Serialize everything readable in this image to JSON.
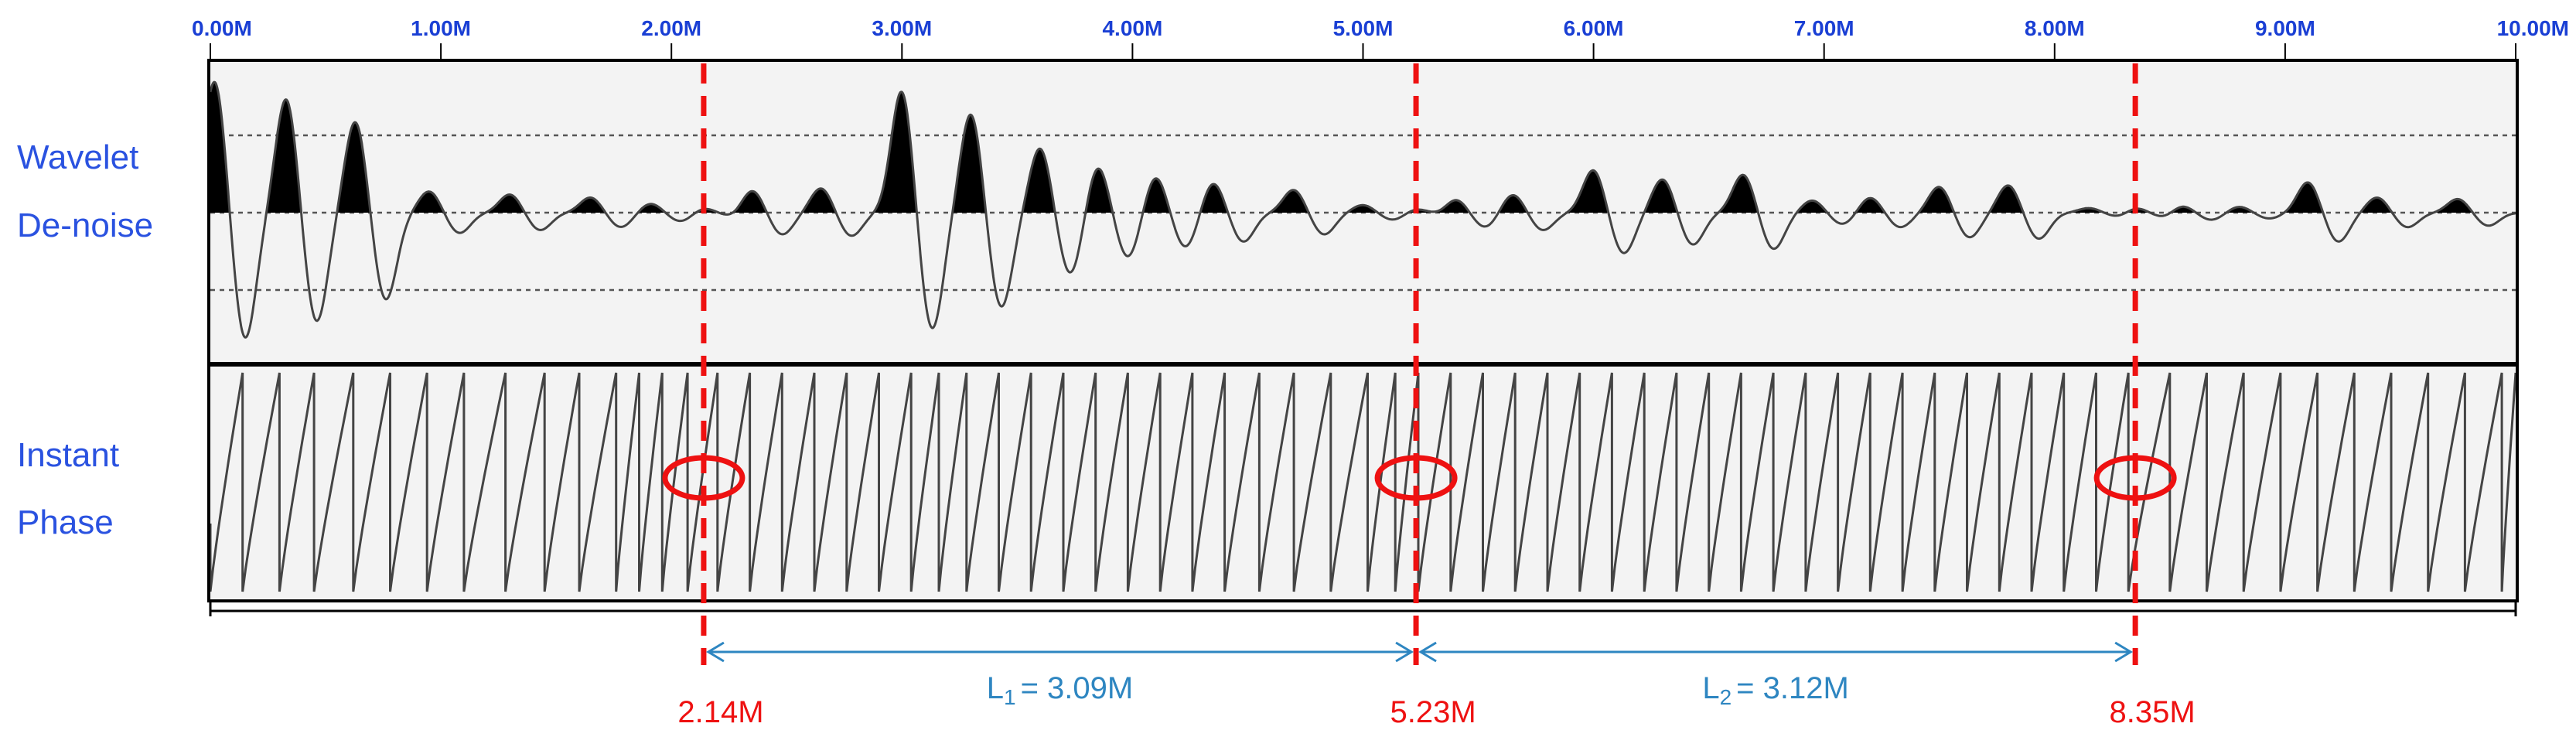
{
  "chart_data": {
    "type": "line",
    "x_unit": "M",
    "xlim": [
      0,
      10
    ],
    "x_ticks": [
      {
        "value": 0,
        "label": "0.00M"
      },
      {
        "value": 1,
        "label": "1.00M"
      },
      {
        "value": 2,
        "label": "2.00M"
      },
      {
        "value": 3,
        "label": "3.00M"
      },
      {
        "value": 4,
        "label": "4.00M"
      },
      {
        "value": 5,
        "label": "5.00M"
      },
      {
        "value": 6,
        "label": "6.00M"
      },
      {
        "value": 7,
        "label": "7.00M"
      },
      {
        "value": 8,
        "label": "8.00M"
      },
      {
        "value": 9,
        "label": "9.00M"
      },
      {
        "value": 10,
        "label": "10.00M"
      }
    ],
    "panels": [
      {
        "line1": "Wavelet",
        "line2": "De-noise"
      },
      {
        "line1": "Instant",
        "line2": "Phase"
      }
    ],
    "markers": [
      {
        "x": 2.14,
        "label": "2.14M"
      },
      {
        "x": 5.23,
        "label": "5.23M"
      },
      {
        "x": 8.35,
        "label": "8.35M"
      }
    ],
    "segments": [
      {
        "from": 2.14,
        "to": 5.23,
        "symbol": "L",
        "sub": "1",
        "value": "= 3.09M"
      },
      {
        "from": 5.23,
        "to": 8.35,
        "symbol": "L",
        "sub": "2",
        "value": "= 3.12M"
      }
    ],
    "wavelet_peaks": [
      {
        "x": 0.02,
        "amp": 1.73
      },
      {
        "x": 0.33,
        "amp": 1.5
      },
      {
        "x": 0.63,
        "amp": 1.2
      },
      {
        "x": 0.95,
        "amp": 0.28
      },
      {
        "x": 1.3,
        "amp": 0.24
      },
      {
        "x": 1.65,
        "amp": 0.2
      },
      {
        "x": 1.91,
        "amp": 0.12
      },
      {
        "x": 2.14,
        "amp": 0.06
      },
      {
        "x": 2.35,
        "amp": 0.3
      },
      {
        "x": 2.65,
        "amp": 0.32
      },
      {
        "x": 3.0,
        "amp": 1.6
      },
      {
        "x": 3.3,
        "amp": 1.3
      },
      {
        "x": 3.6,
        "amp": 0.85
      },
      {
        "x": 3.85,
        "amp": 0.62
      },
      {
        "x": 4.1,
        "amp": 0.48
      },
      {
        "x": 4.35,
        "amp": 0.4
      },
      {
        "x": 4.7,
        "amp": 0.3
      },
      {
        "x": 5.0,
        "amp": 0.1
      },
      {
        "x": 5.23,
        "amp": 0.05
      },
      {
        "x": 5.4,
        "amp": 0.2
      },
      {
        "x": 5.65,
        "amp": 0.24
      },
      {
        "x": 6.0,
        "amp": 0.56
      },
      {
        "x": 6.3,
        "amp": 0.44
      },
      {
        "x": 6.65,
        "amp": 0.5
      },
      {
        "x": 6.95,
        "amp": 0.16
      },
      {
        "x": 7.2,
        "amp": 0.2
      },
      {
        "x": 7.5,
        "amp": 0.34
      },
      {
        "x": 7.8,
        "amp": 0.36
      },
      {
        "x": 8.15,
        "amp": 0.06
      },
      {
        "x": 8.35,
        "amp": 0.07
      },
      {
        "x": 8.55,
        "amp": 0.1
      },
      {
        "x": 8.8,
        "amp": 0.08
      },
      {
        "x": 9.1,
        "amp": 0.4
      },
      {
        "x": 9.4,
        "amp": 0.2
      },
      {
        "x": 9.75,
        "amp": 0.18
      }
    ],
    "phase_wraps": [
      0.0,
      0.14,
      0.3,
      0.45,
      0.62,
      0.78,
      0.94,
      1.1,
      1.28,
      1.45,
      1.6,
      1.76,
      1.86,
      1.96,
      2.07,
      2.2,
      2.34,
      2.48,
      2.62,
      2.76,
      2.9,
      3.04,
      3.16,
      3.28,
      3.42,
      3.56,
      3.7,
      3.84,
      3.98,
      4.12,
      4.26,
      4.4,
      4.55,
      4.7,
      4.86,
      5.02,
      5.14,
      5.24,
      5.38,
      5.52,
      5.66,
      5.8,
      5.94,
      6.08,
      6.22,
      6.36,
      6.5,
      6.64,
      6.78,
      6.92,
      7.06,
      7.2,
      7.34,
      7.48,
      7.62,
      7.76,
      7.9,
      8.04,
      8.18,
      8.32,
      8.5,
      8.66,
      8.82,
      8.98,
      9.14,
      9.3,
      9.46,
      9.62,
      9.78,
      9.94
    ],
    "colors": {
      "axis_tick": "#1a3fd4",
      "row_label": "#2a52e0",
      "marker": "#ee1111",
      "segment": "#2e86c1",
      "trace": "#444444",
      "panel_bg": "#f3f3f3",
      "frame": "#000000"
    }
  }
}
